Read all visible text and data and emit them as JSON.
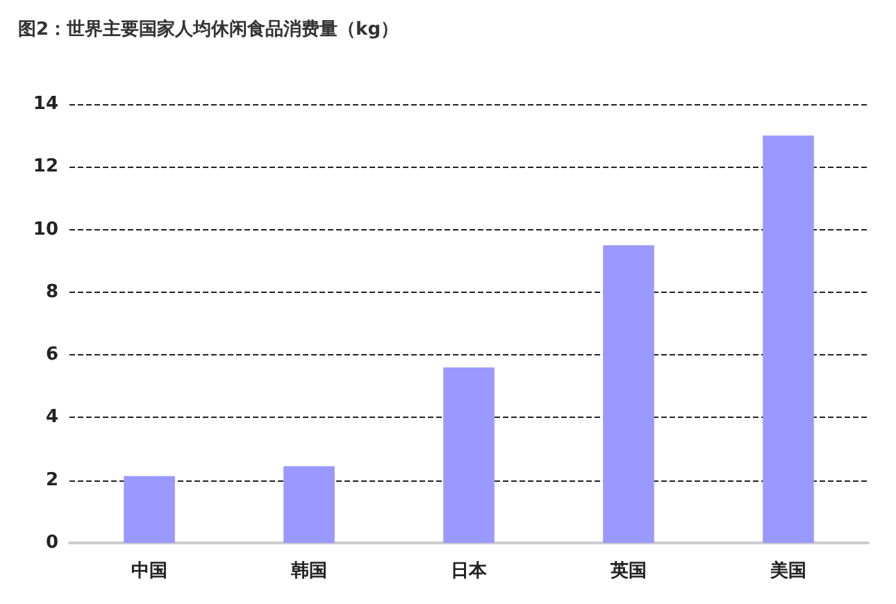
{
  "chart_data": {
    "type": "bar",
    "title": "图2：世界主要国家人均休闲食品消费量（kg）",
    "categories": [
      "中国",
      "韩国",
      "日本",
      "英国",
      "美国"
    ],
    "values": [
      2.13,
      2.45,
      5.6,
      9.5,
      13.0
    ],
    "color": "#9999ff",
    "ylim": [
      0,
      14
    ],
    "yticks": [
      0,
      2,
      4,
      6,
      8,
      10,
      12,
      14
    ],
    "grid": "y"
  }
}
